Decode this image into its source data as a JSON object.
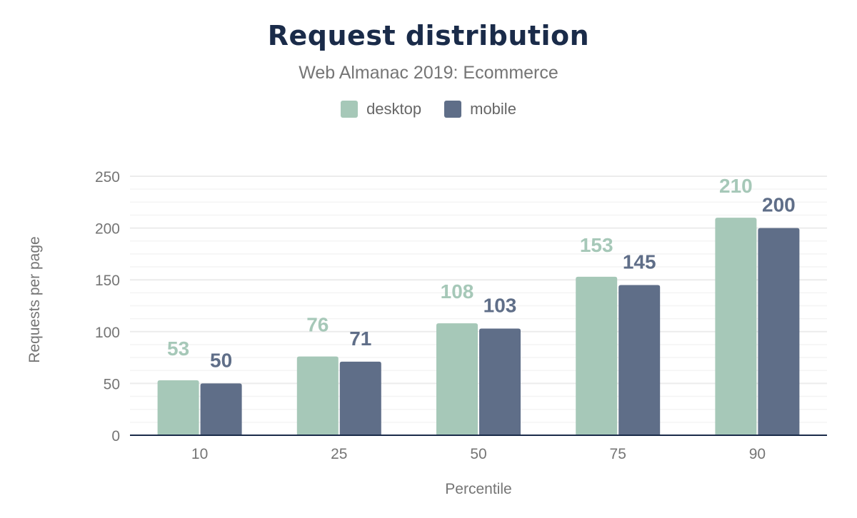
{
  "chart_data": {
    "type": "bar",
    "title": "Request distribution",
    "subtitle": "Web Almanac 2019: Ecommerce",
    "xlabel": "Percentile",
    "ylabel": "Requests per page",
    "categories": [
      "10",
      "25",
      "50",
      "75",
      "90"
    ],
    "series": [
      {
        "name": "desktop",
        "color": "#a6c8b8",
        "values": [
          53,
          76,
          108,
          153,
          210
        ]
      },
      {
        "name": "mobile",
        "color": "#5f6e88",
        "values": [
          50,
          71,
          103,
          145,
          200
        ]
      }
    ],
    "ylim": [
      0,
      250
    ],
    "yticks": [
      "0",
      "50",
      "100",
      "150",
      "200",
      "250"
    ],
    "grid": true,
    "legend": "top-center",
    "data_labels": true
  }
}
